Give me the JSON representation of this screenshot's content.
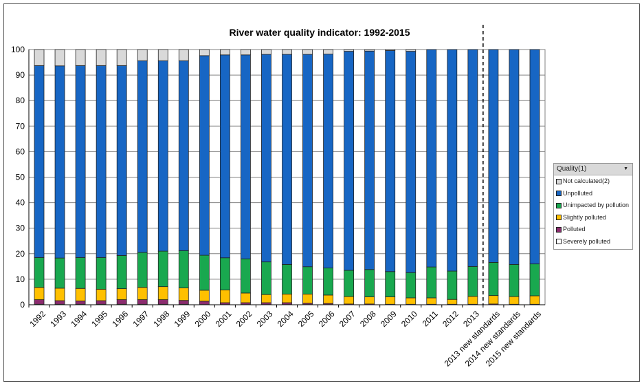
{
  "chart_data": {
    "type": "stacked-bar",
    "title": "River water quality indicator: 1992-2015",
    "xlabel": "",
    "ylabel": "",
    "ylim": [
      0,
      100
    ],
    "yticks": [
      0,
      10,
      20,
      30,
      40,
      50,
      60,
      70,
      80,
      90,
      100
    ],
    "grid": true,
    "legend_position": "right",
    "legend_title": "Quality(1)",
    "categories": [
      "1992",
      "1993",
      "1994",
      "1995",
      "1996",
      "1997",
      "1998",
      "1999",
      "2000",
      "2001",
      "2002",
      "2003",
      "2004",
      "2005",
      "2006",
      "2007",
      "2008",
      "2009",
      "2010",
      "2011",
      "2012",
      "2013",
      "2013 new standards",
      "2014 new standards",
      "2015 new standards"
    ],
    "divider_after": "2013",
    "series": [
      {
        "name": "Severely polluted",
        "color": "#ffffff",
        "values": [
          0.2,
          0.2,
          0.2,
          0.2,
          0.2,
          0.2,
          0.2,
          0.2,
          0.1,
          0.1,
          0.1,
          0.1,
          0.1,
          0.1,
          0.1,
          0,
          0,
          0,
          0,
          0,
          0,
          0,
          0,
          0,
          0
        ]
      },
      {
        "name": "Polluted",
        "color": "#8b2c6e",
        "values": [
          1.8,
          1.4,
          1.3,
          1.4,
          1.8,
          1.8,
          1.8,
          1.5,
          1.3,
          0.7,
          0.7,
          0.7,
          0.7,
          0.5,
          0.4,
          0.3,
          0.3,
          0.2,
          0.2,
          0.2,
          0.2,
          0.2,
          0.3,
          0.2,
          0.2
        ]
      },
      {
        "name": "Slightly polluted",
        "color": "#ffc000",
        "values": [
          4.8,
          4.9,
          4.9,
          4.5,
          4.3,
          4.8,
          5.1,
          4.9,
          4.3,
          5.0,
          3.8,
          3.2,
          3.4,
          3.6,
          3.3,
          2.9,
          2.8,
          2.9,
          2.5,
          2.5,
          1.9,
          3.1,
          3.3,
          3.0,
          3.3
        ]
      },
      {
        "name": "Unimpacted by pollution",
        "color": "#19a84f",
        "values": [
          11.7,
          11.8,
          12.1,
          12.4,
          13.0,
          13.7,
          13.9,
          14.6,
          13.7,
          12.6,
          13.4,
          12.8,
          11.6,
          10.7,
          10.6,
          10.3,
          10.7,
          9.9,
          9.9,
          12.1,
          11.1,
          11.7,
          13.0,
          12.6,
          12.5
        ]
      },
      {
        "name": "Unpolluted",
        "color": "#1766c4",
        "values": [
          75.2,
          75.3,
          75.2,
          75.2,
          74.4,
          75.1,
          74.6,
          74.4,
          78.2,
          79.5,
          79.9,
          81.3,
          82.3,
          83.2,
          83.8,
          85.8,
          85.6,
          86.6,
          86.7,
          85.2,
          86.8,
          85.0,
          83.4,
          84.2,
          84.0
        ]
      },
      {
        "name": "Not calculated(2)",
        "color": "#d9d9d9",
        "values": [
          6.3,
          6.4,
          6.3,
          6.3,
          6.3,
          4.4,
          4.4,
          4.4,
          2.4,
          2.1,
          2.1,
          1.9,
          1.9,
          1.9,
          1.8,
          0.7,
          0.6,
          0.4,
          0.7,
          0,
          0,
          0,
          0,
          0,
          0
        ]
      }
    ]
  }
}
